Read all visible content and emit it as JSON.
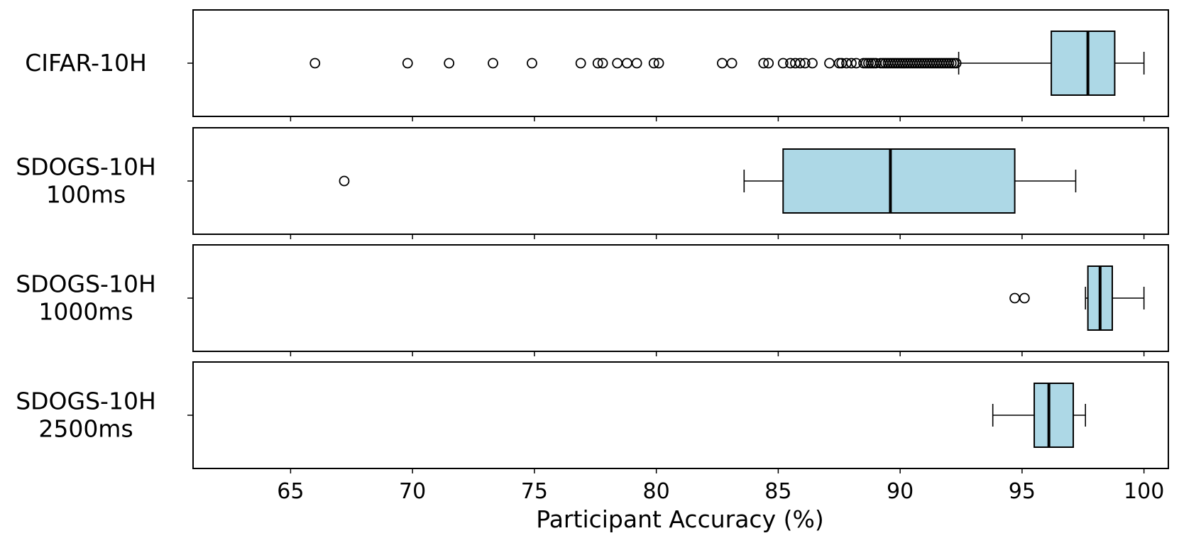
{
  "chart_data": {
    "type": "boxplot",
    "orientation": "horizontal",
    "xlabel": "Participant Accuracy (%)",
    "xlim": [
      61,
      101
    ],
    "xticks": [
      65,
      70,
      75,
      80,
      85,
      90,
      95,
      100
    ],
    "box_color": "#add8e6",
    "grid": false,
    "panels": [
      {
        "label_lines": [
          "CIFAR-10H"
        ],
        "whisker_low": 92.4,
        "q1": 96.2,
        "median": 97.7,
        "q3": 98.8,
        "whisker_high": 100,
        "outliers": [
          66.0,
          69.8,
          71.5,
          73.3,
          74.9,
          76.9,
          77.6,
          77.8,
          78.4,
          78.8,
          79.2,
          79.9,
          80.1,
          82.7,
          83.1,
          84.4,
          84.6,
          85.2,
          85.5,
          85.7,
          85.9,
          86.1,
          86.4,
          87.1,
          87.5,
          87.6,
          87.8,
          88.0,
          88.2,
          88.5,
          88.6,
          88.7,
          88.8,
          88.9,
          89.0,
          89.2,
          89.3,
          89.4,
          89.5,
          89.6,
          89.7,
          89.8,
          89.9,
          90.0,
          90.1,
          90.2,
          90.3,
          90.4,
          90.5,
          90.6,
          90.7,
          90.8,
          90.9,
          91.0,
          91.1,
          91.2,
          91.3,
          91.4,
          91.5,
          91.6,
          91.7,
          91.8,
          91.9,
          92.0,
          92.1,
          92.2,
          92.3
        ]
      },
      {
        "label_lines": [
          "SDOGS-10H",
          "100ms"
        ],
        "whisker_low": 83.6,
        "q1": 85.2,
        "median": 89.6,
        "q3": 94.7,
        "whisker_high": 97.2,
        "outliers": [
          67.2
        ]
      },
      {
        "label_lines": [
          "SDOGS-10H",
          "1000ms"
        ],
        "whisker_low": 97.6,
        "q1": 97.7,
        "median": 98.2,
        "q3": 98.7,
        "whisker_high": 100,
        "outliers": [
          94.7,
          95.1
        ]
      },
      {
        "label_lines": [
          "SDOGS-10H",
          "2500ms"
        ],
        "whisker_low": 93.8,
        "q1": 95.5,
        "median": 96.1,
        "q3": 97.1,
        "whisker_high": 97.6,
        "outliers": []
      }
    ]
  }
}
